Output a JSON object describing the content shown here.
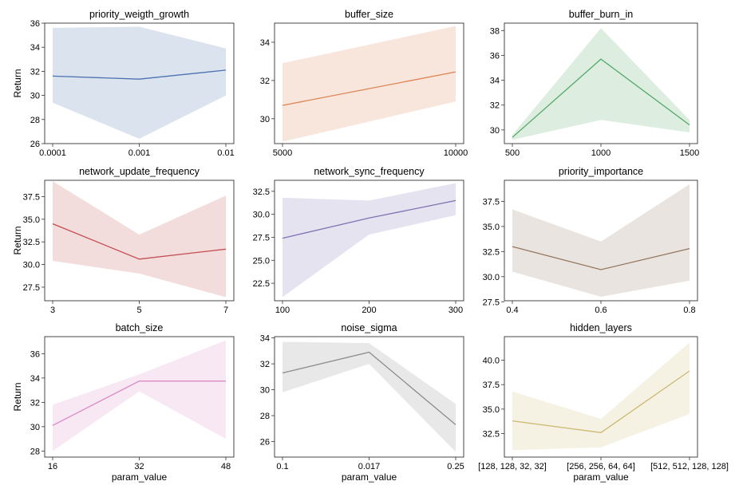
{
  "figure": {
    "shared_xlabel": "param_value",
    "shared_ylabel": "Return"
  },
  "chart_data": [
    {
      "type": "line",
      "title": "priority_weigth_growth",
      "color": "#4c72b0",
      "x": [
        "0.0001",
        "0.001",
        "0.01"
      ],
      "values": [
        31.6,
        31.35,
        32.1
      ],
      "lower": [
        29.4,
        26.4,
        30.0
      ],
      "upper": [
        35.6,
        35.7,
        33.9
      ],
      "ylim": [
        26,
        36
      ],
      "yticks": [
        26,
        28,
        30,
        32,
        34,
        36
      ],
      "xlabel": "",
      "ylabel": "Return"
    },
    {
      "type": "line",
      "title": "buffer_size",
      "color": "#dd8452",
      "x": [
        "5000",
        "10000"
      ],
      "values": [
        30.7,
        32.45
      ],
      "lower": [
        28.8,
        30.9
      ],
      "upper": [
        32.9,
        34.85
      ],
      "ylim": [
        28.7,
        35.0
      ],
      "yticks": [
        30,
        32,
        34
      ],
      "xlabel": "",
      "ylabel": ""
    },
    {
      "type": "line",
      "title": "buffer_burn_in",
      "color": "#55a868",
      "x": [
        "500",
        "1000",
        "1500"
      ],
      "values": [
        29.4,
        35.7,
        30.4
      ],
      "lower": [
        29.2,
        30.8,
        29.8
      ],
      "upper": [
        29.6,
        38.2,
        30.8
      ],
      "ylim": [
        28.9,
        38.6
      ],
      "yticks": [
        30,
        32,
        34,
        36,
        38
      ],
      "xlabel": "",
      "ylabel": ""
    },
    {
      "type": "line",
      "title": "network_update_frequency",
      "color": "#c44e52",
      "x": [
        "3",
        "5",
        "7"
      ],
      "values": [
        34.5,
        30.6,
        31.7
      ],
      "lower": [
        30.4,
        29.0,
        26.4
      ],
      "upper": [
        39.2,
        33.3,
        37.6
      ],
      "ylim": [
        26.0,
        39.3
      ],
      "yticks": [
        27.5,
        30.0,
        32.5,
        35.0,
        37.5
      ],
      "xlabel": "",
      "ylabel": "Return"
    },
    {
      "type": "line",
      "title": "network_sync_frequency",
      "color": "#8172b3",
      "x": [
        "100",
        "200",
        "300"
      ],
      "values": [
        27.4,
        29.6,
        31.5
      ],
      "lower": [
        21.0,
        27.8,
        29.9
      ],
      "upper": [
        31.8,
        31.5,
        33.4
      ],
      "ylim": [
        20.6,
        33.7
      ],
      "yticks": [
        22.5,
        25.0,
        27.5,
        30.0,
        32.5
      ],
      "xlabel": "",
      "ylabel": ""
    },
    {
      "type": "line",
      "title": "priority_importance",
      "color": "#937860",
      "x": [
        "0.4",
        "0.6",
        "0.8"
      ],
      "values": [
        33.0,
        30.7,
        32.8
      ],
      "lower": [
        30.5,
        28.0,
        29.6
      ],
      "upper": [
        36.7,
        33.5,
        39.2
      ],
      "ylim": [
        27.6,
        39.6
      ],
      "yticks": [
        27.5,
        30.0,
        32.5,
        35.0,
        37.5
      ],
      "xlabel": "",
      "ylabel": ""
    },
    {
      "type": "line",
      "title": "batch_size",
      "color": "#da8bc3",
      "x": [
        "16",
        "32",
        "48"
      ],
      "values": [
        30.1,
        33.75,
        33.75
      ],
      "lower": [
        28.0,
        32.9,
        29.0
      ],
      "upper": [
        31.8,
        34.3,
        37.1
      ],
      "ylim": [
        27.5,
        37.4
      ],
      "yticks": [
        28,
        30,
        32,
        34,
        36
      ],
      "xlabel": "param_value",
      "ylabel": "Return"
    },
    {
      "type": "line",
      "title": "noise_sigma",
      "color": "#8c8c8c",
      "x": [
        "0.1",
        "0.017",
        "0.25"
      ],
      "values": [
        31.3,
        32.9,
        27.3
      ],
      "lower": [
        29.8,
        32.0,
        25.2
      ],
      "upper": [
        33.7,
        33.6,
        28.9
      ],
      "ylim": [
        24.8,
        34.1
      ],
      "yticks": [
        26,
        28,
        30,
        32,
        34
      ],
      "xlabel": "param_value",
      "ylabel": ""
    },
    {
      "type": "line",
      "title": "hidden_layers",
      "color": "#ccb974",
      "x": [
        "[128, 128, 32, 32]",
        "[256, 256, 64, 64]",
        "[512, 512, 128, 128]"
      ],
      "values": [
        33.8,
        32.6,
        38.9
      ],
      "lower": [
        30.8,
        31.1,
        34.5
      ],
      "upper": [
        36.8,
        34.0,
        41.8
      ],
      "ylim": [
        30.1,
        42.4
      ],
      "yticks": [
        32.5,
        35.0,
        37.5,
        40.0
      ],
      "xlabel": "param_value",
      "ylabel": ""
    }
  ]
}
